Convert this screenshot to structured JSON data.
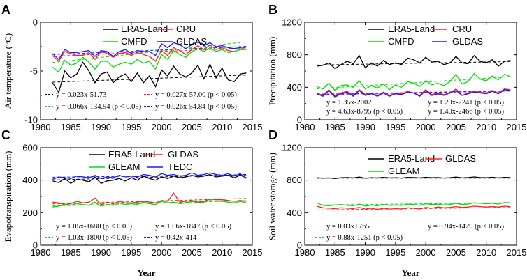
{
  "chart_data": [
    {
      "panel": "A",
      "type": "line",
      "ylabel": "Air temperature (°C)",
      "xlabel": "",
      "xlim": [
        1980,
        2015
      ],
      "ylim": [
        -10,
        0
      ],
      "xticks": [
        1980,
        1985,
        1990,
        1995,
        2000,
        2005,
        2010,
        2015
      ],
      "yticks": [
        -10,
        -5,
        0
      ],
      "ytick_labels": [
        "-10",
        "-5",
        "0"
      ],
      "x": [
        1982,
        1983,
        1984,
        1985,
        1986,
        1987,
        1988,
        1989,
        1990,
        1991,
        1992,
        1993,
        1994,
        1995,
        1996,
        1997,
        1998,
        1999,
        2000,
        2001,
        2002,
        2003,
        2004,
        2005,
        2006,
        2007,
        2008,
        2009,
        2010,
        2011,
        2012,
        2013,
        2014
      ],
      "series": [
        {
          "name": "ERA5-Land",
          "color": "#000000",
          "values": [
            -6.2,
            -7.2,
            -5.0,
            -5.7,
            -5.3,
            -4.1,
            -5.0,
            -6.2,
            -5.3,
            -5.1,
            -6.2,
            -5.6,
            -5.3,
            -6.1,
            -5.2,
            -6.2,
            -5.5,
            -6.6,
            -4.9,
            -5.5,
            -4.5,
            -5.3,
            -5.6,
            -5.2,
            -4.4,
            -5.8,
            -4.3,
            -5.7,
            -4.7,
            -5.9,
            -6.1,
            -5.3,
            -5.2
          ]
        },
        {
          "name": "CRU",
          "color": "#ff2020",
          "values": [
            -3.4,
            -4.0,
            -3.0,
            -3.2,
            -3.4,
            -3.4,
            -3.1,
            -3.8,
            -3.0,
            -3.2,
            -3.6,
            -3.2,
            -3.1,
            -3.4,
            -3.1,
            -3.3,
            -3.5,
            -4.0,
            -2.9,
            -3.4,
            -2.6,
            -2.9,
            -3.3,
            -2.8,
            -2.4,
            -2.8,
            -2.3,
            -2.8,
            -2.6,
            -2.9,
            -3.0,
            -2.8,
            -2.5
          ]
        },
        {
          "name": "CMFD",
          "color": "#00e000",
          "values": [
            -4.6,
            -5.1,
            -3.9,
            -4.4,
            -4.2,
            -3.6,
            -4.1,
            -4.8,
            -4.0,
            -4.0,
            -4.6,
            -4.3,
            -4.1,
            -4.3,
            -3.8,
            -4.2,
            -4.0,
            -4.8,
            -3.3,
            -3.8,
            -2.9,
            -3.3,
            -3.6,
            -3.0,
            -2.7,
            -3.0,
            -2.6,
            -3.0,
            -2.8,
            -3.1,
            -3.0,
            -2.8,
            -2.8
          ]
        },
        {
          "name": "GLDAS",
          "color": "#1a1aff",
          "values": [
            -3.2,
            -3.8,
            -2.8,
            -3.1,
            -3.1,
            -3.0,
            -2.9,
            -3.5,
            -2.9,
            -3.0,
            -3.5,
            -3.0,
            -2.8,
            -3.2,
            -2.9,
            -3.0,
            -3.0,
            -3.4,
            -2.2,
            -2.6,
            -2.1,
            -2.3,
            -2.7,
            -2.3,
            -2.0,
            -2.4,
            -2.1,
            -2.5,
            -2.4,
            -2.6,
            -2.7,
            -2.6,
            -2.5
          ]
        }
      ],
      "trends": [
        {
          "series": "ERA5-Land",
          "slope": 0.023,
          "intercept": -51.73
        },
        {
          "series": "CRU",
          "slope": 0.027,
          "intercept": -57.0
        },
        {
          "series": "CMFD",
          "slope": 0.066,
          "intercept": -134.94
        },
        {
          "series": "GLDAS",
          "slope": 0.026,
          "intercept": -54.84
        }
      ],
      "legend_rows": [
        [
          "ERA5-Land",
          "CRU"
        ],
        [
          "CMFD",
          "GLDAS"
        ]
      ],
      "equations": [
        {
          "color": "#000000",
          "text": "y = 0.023x-51.73"
        },
        {
          "color": "#ff2020",
          "text": "y = 0.027x-57.00 (p < 0.05)"
        },
        {
          "color": "#00e000",
          "text": "y = 0.066x-134.94 (p < 0.05)"
        },
        {
          "color": "#1a1aff",
          "text": "y = 0.026x-54.84 (p < 0.05)"
        }
      ]
    },
    {
      "panel": "B",
      "type": "line",
      "ylabel": "Precipitation (mm)",
      "xlabel": "",
      "xlim": [
        1980,
        2015
      ],
      "ylim": [
        0,
        1200
      ],
      "xticks": [
        1980,
        1985,
        1990,
        1995,
        2000,
        2005,
        2010,
        2015
      ],
      "yticks": [
        0,
        400,
        800,
        1200
      ],
      "ytick_labels": [
        "0",
        "400",
        "800",
        "1200"
      ],
      "x": [
        1982,
        1983,
        1984,
        1985,
        1986,
        1987,
        1988,
        1989,
        1990,
        1991,
        1992,
        1993,
        1994,
        1995,
        1996,
        1997,
        1998,
        1999,
        2000,
        2001,
        2002,
        2003,
        2004,
        2005,
        2006,
        2007,
        2008,
        2009,
        2010,
        2011,
        2012,
        2013,
        2014
      ],
      "series": [
        {
          "name": "ERA5-Land",
          "color": "#000000",
          "values": [
            660,
            670,
            700,
            630,
            680,
            720,
            690,
            790,
            640,
            700,
            660,
            730,
            680,
            700,
            680,
            760,
            740,
            700,
            770,
            710,
            720,
            680,
            700,
            780,
            700,
            690,
            790,
            720,
            700,
            740,
            660,
            720,
            730
          ]
        },
        {
          "name": "CRU",
          "color": "#ff2020",
          "values": [
            330,
            300,
            370,
            290,
            330,
            350,
            300,
            370,
            310,
            330,
            300,
            340,
            300,
            330,
            320,
            350,
            330,
            300,
            370,
            310,
            330,
            310,
            330,
            380,
            300,
            330,
            350,
            340,
            330,
            360,
            330,
            380,
            370
          ]
        },
        {
          "name": "CMFD",
          "color": "#00e000",
          "values": [
            410,
            380,
            450,
            360,
            420,
            430,
            400,
            480,
            380,
            420,
            390,
            440,
            370,
            430,
            400,
            470,
            450,
            410,
            480,
            430,
            450,
            420,
            470,
            560,
            440,
            470,
            570,
            500,
            480,
            540,
            490,
            560,
            530
          ]
        },
        {
          "name": "GLDAS",
          "color": "#1a1aff",
          "values": [
            320,
            290,
            360,
            280,
            320,
            340,
            290,
            360,
            300,
            320,
            290,
            330,
            290,
            320,
            310,
            340,
            330,
            290,
            360,
            300,
            320,
            300,
            330,
            360,
            300,
            320,
            340,
            330,
            320,
            350,
            320,
            370,
            360
          ]
        }
      ],
      "trends": [
        {
          "series": "ERA5-Land",
          "slope": 1.35,
          "intercept": -2002
        },
        {
          "series": "CRU",
          "slope": 1.29,
          "intercept": -2241
        },
        {
          "series": "CMFD",
          "slope": 4.63,
          "intercept": -8795
        },
        {
          "series": "GLDAS",
          "slope": 1.4,
          "intercept": -2466
        }
      ],
      "legend_rows": [
        [
          "ERA5-Land",
          "CRU"
        ],
        [
          "CMFD",
          "GLDAS"
        ]
      ],
      "equations": [
        {
          "color": "#000000",
          "text": "y = 1.35x-2002"
        },
        {
          "color": "#ff2020",
          "text": "y = 1.29x-2241 (p < 0.05)"
        },
        {
          "color": "#00e000",
          "text": "y = 4.63x-8795 (p < 0.05)"
        },
        {
          "color": "#1a1aff",
          "text": "y = 1.40x-2466 (p < 0.05)"
        }
      ]
    },
    {
      "panel": "C",
      "type": "line",
      "ylabel": "Evapotranspiration (mm)",
      "xlabel": "Year",
      "xlim": [
        1980,
        2015
      ],
      "ylim": [
        0,
        600
      ],
      "xticks": [
        1980,
        1985,
        1990,
        1995,
        2000,
        2005,
        2010,
        2015
      ],
      "yticks": [
        0,
        200,
        400,
        600
      ],
      "ytick_labels": [
        "0",
        "200",
        "400",
        "600"
      ],
      "x": [
        1982,
        1983,
        1984,
        1985,
        1986,
        1987,
        1988,
        1989,
        1990,
        1991,
        1992,
        1993,
        1994,
        1995,
        1996,
        1997,
        1998,
        1999,
        2000,
        2001,
        2002,
        2003,
        2004,
        2005,
        2006,
        2007,
        2008,
        2009,
        2010,
        2011,
        2012,
        2013,
        2014
      ],
      "series": [
        {
          "name": "ERA5-Land",
          "color": "#000000",
          "values": [
            395,
            385,
            410,
            380,
            405,
            400,
            390,
            420,
            380,
            395,
            400,
            410,
            395,
            415,
            400,
            425,
            410,
            400,
            420,
            410,
            425,
            415,
            420,
            430,
            420,
            425,
            435,
            420,
            425,
            430,
            415,
            430,
            415
          ]
        },
        {
          "name": "GLDAS",
          "color": "#ff2020",
          "values": [
            265,
            260,
            250,
            255,
            270,
            260,
            265,
            290,
            250,
            265,
            255,
            270,
            260,
            260,
            265,
            270,
            265,
            260,
            275,
            270,
            320,
            265,
            270,
            275,
            265,
            270,
            285,
            280,
            280,
            275,
            270,
            275,
            270
          ]
        },
        {
          "name": "GLEAM",
          "color": "#00e000",
          "values": [
            235,
            240,
            250,
            245,
            255,
            250,
            245,
            265,
            240,
            250,
            245,
            260,
            250,
            255,
            250,
            265,
            255,
            250,
            270,
            260,
            265,
            255,
            260,
            270,
            260,
            265,
            275,
            270,
            270,
            265,
            260,
            270,
            260
          ]
        },
        {
          "name": "TEDC",
          "color": "#1a1aff",
          "values": [
            405,
            420,
            415,
            410,
            425,
            420,
            415,
            430,
            410,
            420,
            415,
            430,
            420,
            425,
            420,
            435,
            430,
            420,
            440,
            430,
            435,
            425,
            430,
            445,
            430,
            435,
            445,
            435,
            430,
            440,
            425,
            440,
            410
          ]
        }
      ],
      "trends": [
        {
          "series": "ERA5-Land",
          "slope": 1.05,
          "intercept": -1680
        },
        {
          "series": "GLDAS",
          "slope": 1.06,
          "intercept": -1847
        },
        {
          "series": "GLEAM",
          "slope": 1.03,
          "intercept": -1800
        },
        {
          "series": "TEDC",
          "slope": 0.42,
          "intercept": -414
        }
      ],
      "legend_rows": [
        [
          "ERA5-Land",
          "GLDAS"
        ],
        [
          "GLEAM",
          "TEDC"
        ]
      ],
      "equations": [
        {
          "color": "#000000",
          "text": "y = 1.05x-1680 (p < 0.05)"
        },
        {
          "color": "#ff2020",
          "text": "y = 1.06x-1847 (p < 0.05)"
        },
        {
          "color": "#00e000",
          "text": "y = 1.03x-1800 (p < 0.05)"
        },
        {
          "color": "#1a1aff",
          "text": "y = 0.42x-414"
        }
      ]
    },
    {
      "panel": "D",
      "type": "line",
      "ylabel": "Soil water storage (mm)",
      "xlabel": "Year",
      "xlim": [
        1980,
        2015
      ],
      "ylim": [
        0,
        1200
      ],
      "xticks": [
        1980,
        1985,
        1990,
        1995,
        2000,
        2005,
        2010,
        2015
      ],
      "yticks": [
        0,
        400,
        800,
        1200
      ],
      "ytick_labels": [
        "0",
        "400",
        "800",
        "1200"
      ],
      "x": [
        1982,
        1983,
        1984,
        1985,
        1986,
        1987,
        1988,
        1989,
        1990,
        1991,
        1992,
        1993,
        1994,
        1995,
        1996,
        1997,
        1998,
        1999,
        2000,
        2001,
        2002,
        2003,
        2004,
        2005,
        2006,
        2007,
        2008,
        2009,
        2010,
        2011,
        2012,
        2013,
        2014
      ],
      "series": [
        {
          "name": "ERA5-Land",
          "color": "#000000",
          "values": [
            830,
            825,
            828,
            820,
            830,
            832,
            828,
            838,
            825,
            830,
            828,
            835,
            828,
            830,
            826,
            835,
            832,
            828,
            836,
            830,
            832,
            826,
            830,
            838,
            828,
            832,
            840,
            832,
            830,
            836,
            828,
            834,
            832
          ]
        },
        {
          "name": "GLDAS",
          "color": "#ff2020",
          "values": [
            480,
            460,
            455,
            450,
            460,
            455,
            450,
            465,
            445,
            455,
            440,
            455,
            445,
            450,
            445,
            460,
            455,
            445,
            465,
            455,
            470,
            460,
            465,
            475,
            465,
            470,
            480,
            475,
            470,
            475,
            470,
            480,
            475
          ]
        },
        {
          "name": "GLEAM",
          "color": "#00e000",
          "values": [
            520,
            490,
            485,
            495,
            500,
            490,
            485,
            505,
            480,
            495,
            485,
            500,
            490,
            495,
            490,
            505,
            500,
            490,
            510,
            500,
            505,
            495,
            500,
            515,
            500,
            505,
            520,
            515,
            510,
            515,
            505,
            525,
            520
          ]
        }
      ],
      "trends": [
        {
          "series": "ERA5-Land",
          "slope": 0.03,
          "intercept": 765
        },
        {
          "series": "GLDAS",
          "slope": 0.94,
          "intercept": -1429
        },
        {
          "series": "GLEAM",
          "slope": 0.88,
          "intercept": -1251
        }
      ],
      "legend_rows": [
        [
          "ERA5-Land",
          "GLDAS"
        ],
        [
          "GLEAM"
        ]
      ],
      "equations": [
        {
          "color": "#000000",
          "text": "y = 0.03x+765"
        },
        {
          "color": "#ff2020",
          "text": "y = 0.94x-1429 (p < 0.05)"
        },
        {
          "color": "#00e000",
          "text": "y = 0.88x-1251 (p < 0.05)"
        }
      ]
    }
  ]
}
